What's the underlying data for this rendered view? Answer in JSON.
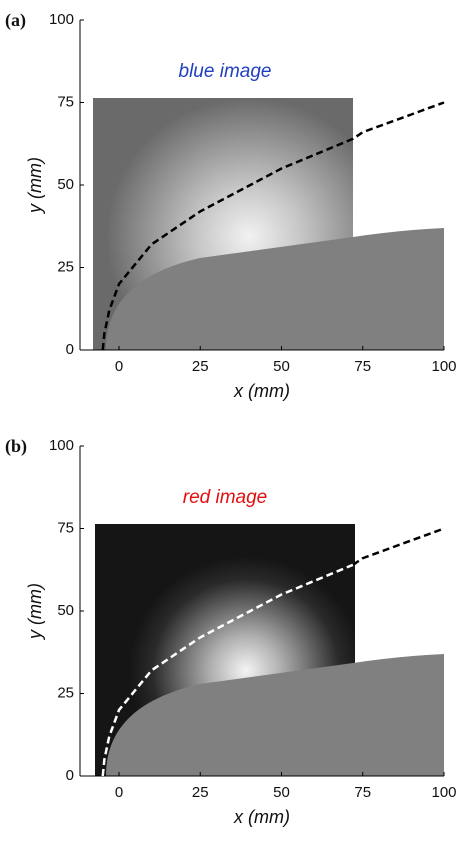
{
  "chart_data": [
    {
      "type": "line",
      "panel_label": "(a)",
      "annotation": "blue image",
      "annotation_color": "#1f3fbf",
      "xlabel": "x (mm)",
      "ylabel": "y (mm)",
      "xlim": [
        -12,
        100
      ],
      "xticks": [
        0,
        25,
        50,
        75,
        100
      ],
      "ylim": [
        0,
        100
      ],
      "yticks": [
        0,
        25,
        50,
        75,
        100
      ],
      "x": [
        -5,
        -4.5,
        -3,
        0,
        10,
        25,
        50,
        72,
        75,
        100
      ],
      "series": [
        {
          "color": "#000000",
          "values": [
            0,
            5,
            12,
            20,
            32,
            42,
            55,
            64,
            66,
            75
          ]
        }
      ]
    },
    {
      "type": "line",
      "panel_label": "(b)",
      "annotation": "red image",
      "annotation_color": "#e01010",
      "xlabel": "x (mm)",
      "ylabel": "y (mm)",
      "xlim": [
        -12,
        100
      ],
      "xticks": [
        0,
        25,
        50,
        75,
        100
      ],
      "ylim": [
        0,
        100
      ],
      "yticks": [
        0,
        25,
        50,
        75,
        100
      ],
      "x": [
        -5,
        -4.5,
        -3,
        0,
        10,
        25,
        50,
        72,
        75,
        100
      ],
      "series": [
        {
          "color": "#ffffff",
          "values": [
            0,
            5,
            12,
            20,
            32,
            42,
            55,
            64,
            null,
            null
          ]
        },
        {
          "color": "#000000",
          "values": [
            null,
            null,
            null,
            null,
            null,
            null,
            null,
            64,
            66,
            75
          ]
        }
      ]
    }
  ]
}
